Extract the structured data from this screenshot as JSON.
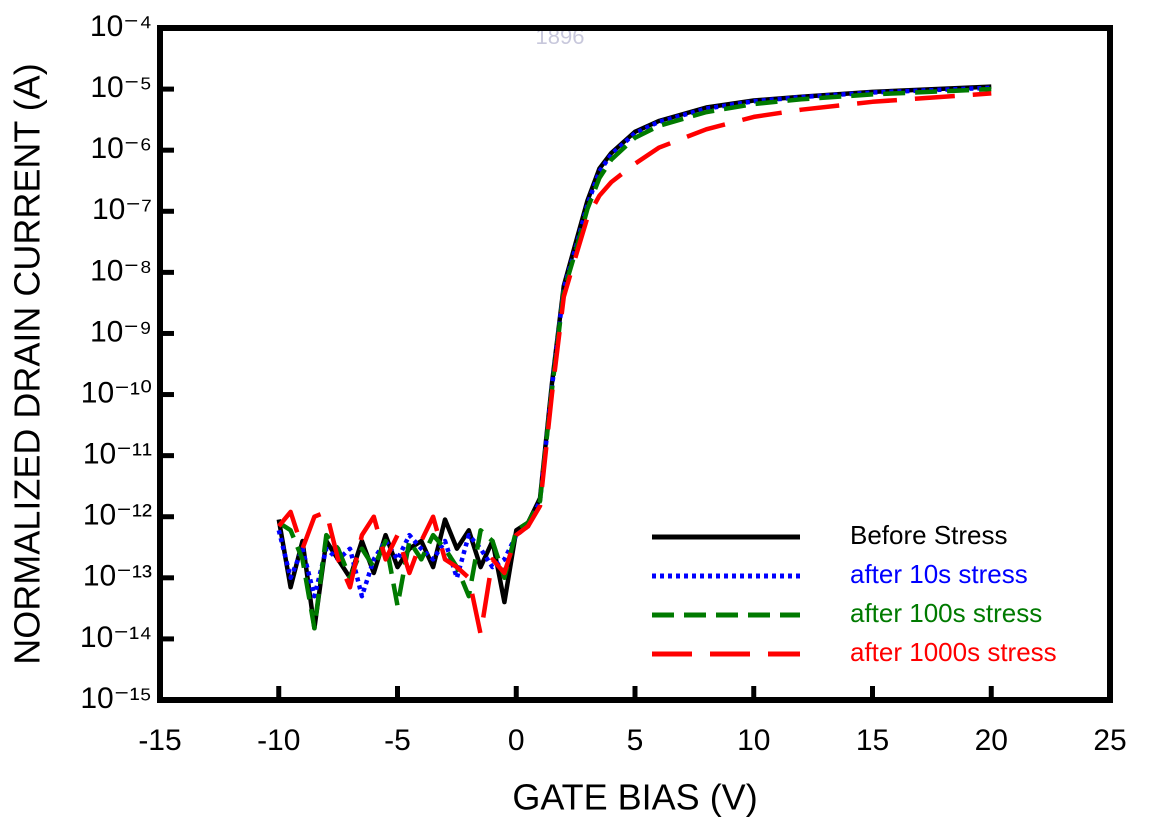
{
  "chart_data": {
    "type": "line",
    "watermark": "1896",
    "xlabel": "GATE BIAS (V)",
    "ylabel": "NORMALIZED DRAIN CURRENT (A)",
    "x": [
      -10,
      -9.5,
      -9,
      -8.5,
      -8,
      -7.5,
      -7,
      -6.5,
      -6,
      -5.5,
      -5,
      -4.5,
      -4,
      -3.5,
      -3,
      -2.5,
      -2,
      -1.5,
      -1,
      -0.5,
      0,
      0.5,
      1,
      1.5,
      2,
      2.5,
      3,
      3.5,
      4,
      5,
      6,
      8,
      10,
      12,
      15,
      20
    ],
    "series": [
      {
        "name": "Before Stress",
        "color": "#000000",
        "style": "solid",
        "values": [
          9e-13,
          7e-14,
          4e-13,
          1.5e-14,
          4e-13,
          2e-13,
          1e-13,
          4e-13,
          1.2e-13,
          5e-13,
          1.5e-13,
          3e-13,
          4e-13,
          1.5e-13,
          9e-13,
          3e-13,
          6e-13,
          1.5e-13,
          4e-13,
          4e-14,
          6e-13,
          8e-13,
          2e-12,
          1.5e-10,
          6e-09,
          3e-08,
          1.5e-07,
          5e-07,
          9e-07,
          2e-06,
          3e-06,
          5e-06,
          6.5e-06,
          7.5e-06,
          9e-06,
          1.1e-05
        ]
      },
      {
        "name": "after 10s stress",
        "color": "#0000ff",
        "style": "dotted",
        "values": [
          6e-13,
          1e-13,
          3e-13,
          5e-14,
          3e-13,
          2e-13,
          3e-13,
          5e-14,
          2e-13,
          4e-13,
          2e-13,
          5e-13,
          3e-13,
          2e-13,
          4e-13,
          1e-13,
          5e-13,
          3e-13,
          1.5e-13,
          2e-13,
          5e-13,
          7e-13,
          1.8e-12,
          1.3e-10,
          5.5e-09,
          2.5e-08,
          1.3e-07,
          4.5e-07,
          8.5e-07,
          1.9e-06,
          2.9e-06,
          4.8e-06,
          6.3e-06,
          7.4e-06,
          8.8e-06,
          1.05e-05
        ]
      },
      {
        "name": "after 100s stress",
        "color": "#007a00",
        "style": "dashed",
        "values": [
          8e-13,
          6e-13,
          2e-13,
          1.5e-14,
          5e-13,
          3e-13,
          1e-13,
          3e-13,
          1.5e-13,
          4e-13,
          3.5e-14,
          4e-13,
          2e-13,
          5e-13,
          3e-13,
          1.5e-13,
          5e-14,
          6e-13,
          4e-13,
          1e-13,
          6e-13,
          8e-13,
          1.8e-12,
          1.2e-10,
          5e-09,
          2.2e-08,
          1.1e-07,
          3.5e-07,
          7e-07,
          1.6e-06,
          2.5e-06,
          4.2e-06,
          5.7e-06,
          6.8e-06,
          8.2e-06,
          1e-05
        ]
      },
      {
        "name": "after 1000s stress",
        "color": "#ff0000",
        "style": "longdash",
        "values": [
          7e-13,
          1.2e-12,
          3e-13,
          1e-12,
          1.2e-12,
          2e-13,
          7e-14,
          5e-13,
          1e-12,
          2e-13,
          5e-13,
          1.2e-13,
          4e-13,
          1e-12,
          2e-13,
          1.5e-13,
          1e-13,
          1.2e-14,
          2e-13,
          1.2e-13,
          5e-13,
          7e-13,
          1.5e-12,
          1e-10,
          4e-09,
          1.8e-08,
          8e-08,
          1.8e-07,
          3e-07,
          6e-07,
          1.1e-06,
          2.2e-06,
          3.5e-06,
          4.6e-06,
          6.2e-06,
          8.5e-06
        ]
      }
    ],
    "xlim": [
      -15,
      25
    ],
    "xticks": [
      -15,
      -10,
      -5,
      0,
      5,
      10,
      15,
      20,
      25
    ],
    "ylog": true,
    "ylim": [
      1e-15,
      0.0001
    ],
    "yticks": [
      {
        "value": 1e-15,
        "label": "10⁻¹⁵"
      },
      {
        "value": 1e-14,
        "label": "10⁻¹⁴"
      },
      {
        "value": 1e-13,
        "label": "10⁻¹³"
      },
      {
        "value": 1e-12,
        "label": "10⁻¹²"
      },
      {
        "value": 1e-11,
        "label": "10⁻¹¹"
      },
      {
        "value": 1e-10,
        "label": "10⁻¹⁰"
      },
      {
        "value": 1e-09,
        "label": "10⁻⁹"
      },
      {
        "value": 1e-08,
        "label": "10⁻⁸"
      },
      {
        "value": 1e-07,
        "label": "10⁻⁷"
      },
      {
        "value": 1e-06,
        "label": "10⁻⁶"
      },
      {
        "value": 1e-05,
        "label": "10⁻⁵"
      },
      {
        "value": 0.0001,
        "label": "10⁻⁴"
      }
    ],
    "legend": "lower right"
  }
}
